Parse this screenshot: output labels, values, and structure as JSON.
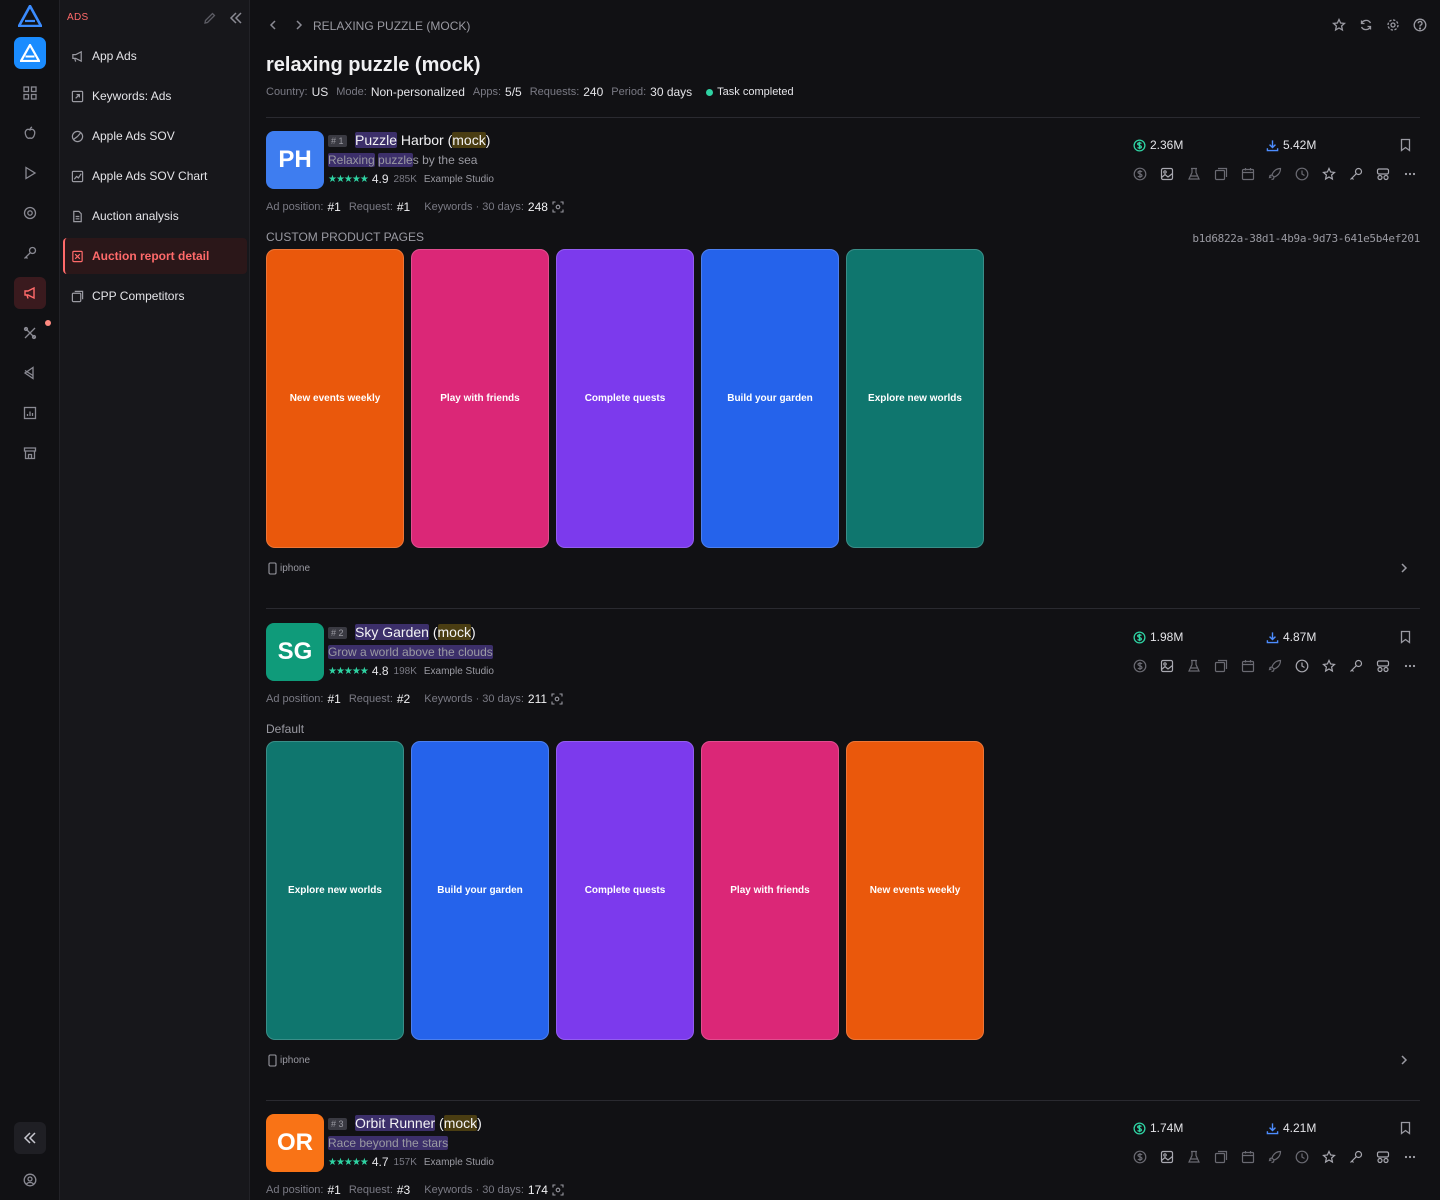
{
  "sidebar": {
    "section_title": "ADS",
    "items": [
      {
        "label": "App Ads",
        "icon": "megaphone-icon"
      },
      {
        "label": "Keywords: Ads",
        "icon": "external-link-icon"
      },
      {
        "label": "Apple Ads SOV",
        "icon": "pie-chart-icon"
      },
      {
        "label": "Apple Ads SOV Chart",
        "icon": "line-chart-icon"
      },
      {
        "label": "Auction analysis",
        "icon": "document-icon"
      },
      {
        "label": "Auction report detail",
        "icon": "report-icon"
      },
      {
        "label": "CPP Competitors",
        "icon": "gallery-icon"
      }
    ]
  },
  "header": {
    "breadcrumb": "RELAXING PUZZLE (MOCK)",
    "title": "relaxing puzzle (mock)"
  },
  "meta": {
    "country_label": "Country:",
    "country": "US",
    "mode_label": "Mode:",
    "mode": "Non-personalized",
    "apps_label": "Apps:",
    "apps": "5/5",
    "requests_label": "Requests:",
    "requests": "240",
    "period_label": "Period:",
    "period": "30 days",
    "status": "Task completed"
  },
  "labels": {
    "ad_position": "Ad position:",
    "request": "Request:",
    "keywords": "Keywords · 30 days:",
    "device": "iphone"
  },
  "apps": [
    {
      "rank": "# 1",
      "initials": "PH",
      "icon_color": "#3e7df0",
      "name_main": "Puzzle",
      "name_rest": " Harbor (",
      "name_tag": "mock",
      "name_end": ")",
      "subtitle_a": "Relaxing",
      "subtitle_b": " ",
      "subtitle_c": "puzzle",
      "subtitle_d": "s by the sea",
      "rating": "4.9",
      "rating_count": "285K",
      "developer": "Example Studio",
      "ad_position": "#1",
      "request": "#1",
      "keywords_30d": "248",
      "revenue": "2.36M",
      "downloads": "5.42M",
      "cpp_label": "CUSTOM PRODUCT PAGES",
      "cpp_id": "b1d6822a-38d1-4b9a-9d73-641e5b4ef201",
      "screenshots": [
        {
          "caption": "New events weekly",
          "color": "#ea580c"
        },
        {
          "caption": "Play with friends",
          "color": "#db2777"
        },
        {
          "caption": "Complete quests",
          "color": "#7c3aed"
        },
        {
          "caption": "Build your garden",
          "color": "#2563eb"
        },
        {
          "caption": "Explore new worlds",
          "color": "#0f766e"
        }
      ]
    },
    {
      "rank": "# 2",
      "initials": "SG",
      "icon_color": "#0f9b7a",
      "name_main": "Sky Garden",
      "name_rest": " (",
      "name_tag": "mock",
      "name_end": ")",
      "subtitle_a": "Grow a world above the clouds",
      "subtitle_b": "",
      "subtitle_c": "",
      "subtitle_d": "",
      "rating": "4.8",
      "rating_count": "198K",
      "developer": "Example Studio",
      "ad_position": "#1",
      "request": "#2",
      "keywords_30d": "211",
      "revenue": "1.98M",
      "downloads": "4.87M",
      "cpp_label": "Default",
      "cpp_id": "",
      "screenshots": [
        {
          "caption": "Explore new worlds",
          "color": "#0f766e"
        },
        {
          "caption": "Build your garden",
          "color": "#2563eb"
        },
        {
          "caption": "Complete quests",
          "color": "#7c3aed"
        },
        {
          "caption": "Play with friends",
          "color": "#db2777"
        },
        {
          "caption": "New events weekly",
          "color": "#ea580c"
        }
      ]
    },
    {
      "rank": "# 3",
      "initials": "OR",
      "icon_color": "#f97316",
      "name_main": "Orbit Runner",
      "name_rest": " (",
      "name_tag": "mock",
      "name_end": ")",
      "subtitle_a": "Race beyond the stars",
      "subtitle_b": "",
      "subtitle_c": "",
      "subtitle_d": "",
      "rating": "4.7",
      "rating_count": "157K",
      "developer": "Example Studio",
      "ad_position": "#1",
      "request": "#3",
      "keywords_30d": "174",
      "revenue": "1.74M",
      "downloads": "4.21M",
      "cpp_label": "",
      "cpp_id": "",
      "screenshots": []
    }
  ],
  "colors": {
    "accent": "#ff6a6a",
    "status_green": "#2fd3a3",
    "revenue_icon": "#2fd3a3",
    "download_icon": "#4d8dff"
  }
}
